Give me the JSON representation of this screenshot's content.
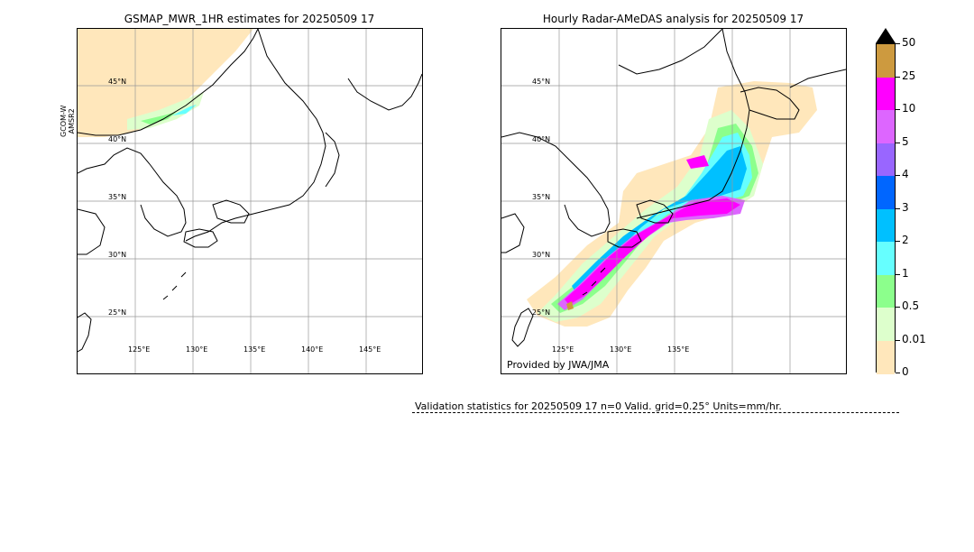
{
  "left_panel": {
    "title": "GSMAP_MWR_1HR estimates for 20250509 17",
    "sensor_label_line1": "GCOM-W",
    "sensor_label_line2": "AMSR2",
    "lat_labels": [
      "45°N",
      "40°N",
      "35°N",
      "30°N",
      "25°N"
    ],
    "lon_labels": [
      "125°E",
      "130°E",
      "135°E",
      "140°E",
      "145°E"
    ]
  },
  "right_panel": {
    "title": "Hourly Radar-AMeDAS analysis for 20250509 17",
    "lat_labels": [
      "45°N",
      "40°N",
      "35°N",
      "30°N",
      "25°N"
    ],
    "lon_labels": [
      "125°E",
      "130°E",
      "135°E"
    ],
    "credit": "Provided by JWA/JMA"
  },
  "colorbar": {
    "units": "mm/hr",
    "ticks": [
      "50",
      "25",
      "10",
      "5",
      "4",
      "3",
      "2",
      "1",
      "0.5",
      "0.01",
      "0"
    ],
    "colors": [
      "#cd9a3f",
      "#ff00ff",
      "#dd66ff",
      "#9966ff",
      "#0066ff",
      "#00c0ff",
      "#66ffff",
      "#8cff8c",
      "#ddffcc",
      "#ffe7bb"
    ],
    "over_color": "#000000"
  },
  "validation": {
    "text": "Validation statistics for 20250509 17  n=0 Valid. grid=0.25° Units=mm/hr."
  }
}
